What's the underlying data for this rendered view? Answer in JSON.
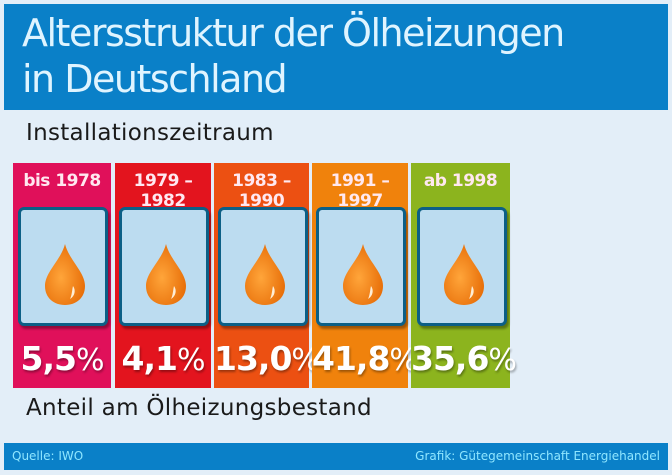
{
  "header": {
    "title_line1": "Altersstruktur der Ölheizungen",
    "title_line2": "in Deutschland"
  },
  "subtitle": "Installationszeitraum",
  "bottom_label": "Anteil am Ölheizungsbestand",
  "footer": {
    "source": "Quelle: IWO",
    "credit": "Grafik: Gütegemeinschaft Energiehandel"
  },
  "columns": [
    {
      "period": "bis 1978",
      "value": "5,5",
      "unit": "%",
      "color": "#e0105a",
      "icon": "oil-drop-icon"
    },
    {
      "period": "1979 – 1982",
      "value": "4,1",
      "unit": "%",
      "color": "#e3141e",
      "icon": "oil-drop-icon"
    },
    {
      "period": "1983 – 1990",
      "value": "13,0",
      "unit": "%",
      "color": "#ec5012",
      "icon": "oil-drop-icon"
    },
    {
      "period": "1991 – 1997",
      "value": "41,8",
      "unit": "%",
      "color": "#f0820c",
      "icon": "oil-drop-icon"
    },
    {
      "period": "ab 1998",
      "value": "35,6",
      "unit": "%",
      "color": "#8cb41e",
      "icon": "oil-drop-icon"
    }
  ],
  "colors": {
    "header_blue": "#0a80c8",
    "background": "#e3eef8",
    "card_fill": "#bcdcf0",
    "drop_orange": "#f07d0f"
  },
  "chart_data": {
    "type": "bar",
    "title": "Altersstruktur der Ölheizungen in Deutschland",
    "xlabel": "Installationszeitraum",
    "ylabel": "Anteil am Ölheizungsbestand (%)",
    "categories": [
      "bis 1978",
      "1979–1982",
      "1983–1990",
      "1991–1997",
      "ab 1998"
    ],
    "values": [
      5.5,
      4.1,
      13.0,
      41.8,
      35.6
    ],
    "unit": "%",
    "source": "Quelle: IWO",
    "credit": "Grafik: Gütegemeinschaft Energiehandel"
  }
}
